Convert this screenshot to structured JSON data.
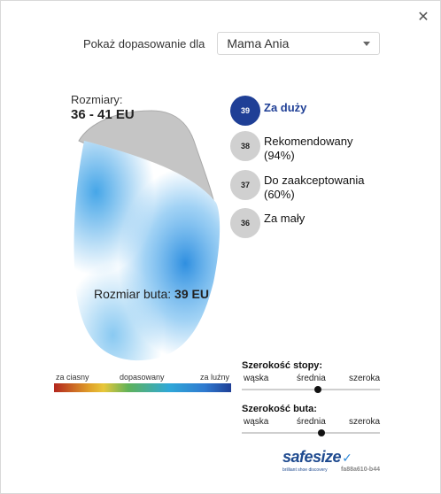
{
  "profile": {
    "label": "Pokaż dopasowanie dla",
    "selected": "Mama Ania"
  },
  "sizes_range": {
    "label": "Rozmiary:",
    "value": "36 - 41 EU"
  },
  "shoe_size": {
    "label": "Rozmiar buta:",
    "value": "39 EU"
  },
  "size_options": [
    {
      "size": "39",
      "label": "Za duży",
      "active": true
    },
    {
      "size": "38",
      "label": "Rekomendowany",
      "detail": "(94%)",
      "active": false
    },
    {
      "size": "37",
      "label": "Do zaakceptowania",
      "detail": "(60%)",
      "active": false
    },
    {
      "size": "36",
      "label": "Za mały",
      "active": false
    }
  ],
  "fit_scale": {
    "tight": "za ciasny",
    "fit": "dopasowany",
    "loose": "za luźny"
  },
  "foot_width": {
    "title": "Szerokość stopy:",
    "narrow": "wąska",
    "medium": "średnia",
    "wide": "szeroka",
    "value": 0.55
  },
  "shoe_width": {
    "title": "Szerokość buta:",
    "narrow": "wąska",
    "medium": "średnia",
    "wide": "szeroka",
    "value": 0.58
  },
  "brand": {
    "name": "safesize",
    "tagline": "brilliant shoe discovery",
    "code": "fa88a610-b44"
  },
  "colors": {
    "active": "#1f3f96",
    "inactive_circle": "#d0d0d0",
    "brand": "#1e4a8f"
  }
}
